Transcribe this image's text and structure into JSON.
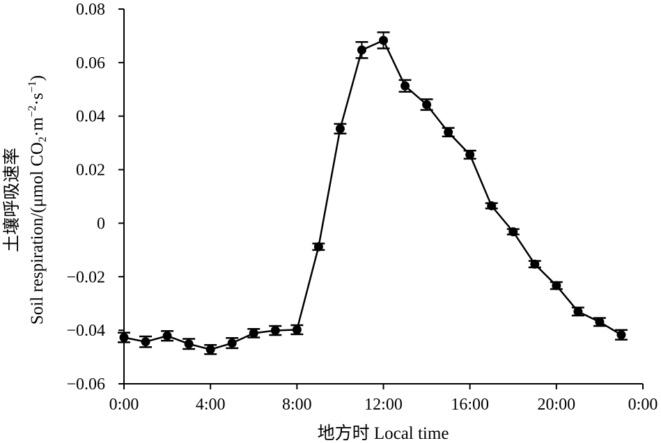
{
  "chart_data": {
    "type": "line",
    "title": "",
    "xlabel": "地方时 Local time",
    "ylabel_cn": "土壤呼吸速率",
    "ylabel_en": "Soil respiration/(μmol CO",
    "ylabel_unit_tail": "·m",
    "ylabel_sub": "2",
    "ylabel_sup1": "−2",
    "ylabel_mid": "·s",
    "ylabel_sup2": "−1",
    "ylabel_close": ")",
    "x_ticks": [
      {
        "hour": 0,
        "label": "0:00"
      },
      {
        "hour": 4,
        "label": "4:00"
      },
      {
        "hour": 8,
        "label": "8:00"
      },
      {
        "hour": 12,
        "label": "12:00"
      },
      {
        "hour": 16,
        "label": "16:00"
      },
      {
        "hour": 20,
        "label": "20:00"
      },
      {
        "hour": 24,
        "label": "0:00"
      }
    ],
    "y_ticks": [
      {
        "value": 0.08,
        "label": "0.08"
      },
      {
        "value": 0.06,
        "label": "0.06"
      },
      {
        "value": 0.04,
        "label": "0.04"
      },
      {
        "value": 0.02,
        "label": "0.02"
      },
      {
        "value": 0,
        "label": "0"
      },
      {
        "value": -0.02,
        "label": "−0.02"
      },
      {
        "value": -0.04,
        "label": "−0.04"
      },
      {
        "value": -0.06,
        "label": "−0.06"
      }
    ],
    "xlim": [
      0,
      24
    ],
    "ylim": [
      -0.06,
      0.08
    ],
    "grid": false,
    "series": [
      {
        "x": [
          0,
          1,
          2,
          3,
          4,
          5,
          6,
          7,
          8,
          9,
          10,
          11,
          12,
          13,
          14,
          15,
          16,
          17,
          18,
          19,
          20,
          21,
          22,
          23
        ],
        "y": [
          -0.0427,
          -0.0443,
          -0.0421,
          -0.0451,
          -0.0472,
          -0.0448,
          -0.0411,
          -0.0401,
          -0.0398,
          -0.0088,
          0.0353,
          0.0647,
          0.0683,
          0.0513,
          0.0443,
          0.034,
          0.0256,
          0.0065,
          -0.0032,
          -0.0153,
          -0.0233,
          -0.033,
          -0.0369,
          -0.0417
        ],
        "err": [
          0.0018,
          0.002,
          0.0018,
          0.0019,
          0.0017,
          0.0019,
          0.0016,
          0.0017,
          0.0017,
          0.0012,
          0.0018,
          0.003,
          0.003,
          0.0022,
          0.002,
          0.0016,
          0.0015,
          0.001,
          0.001,
          0.0012,
          0.0013,
          0.0015,
          0.0015,
          0.0018
        ],
        "color": "#000000"
      }
    ]
  }
}
